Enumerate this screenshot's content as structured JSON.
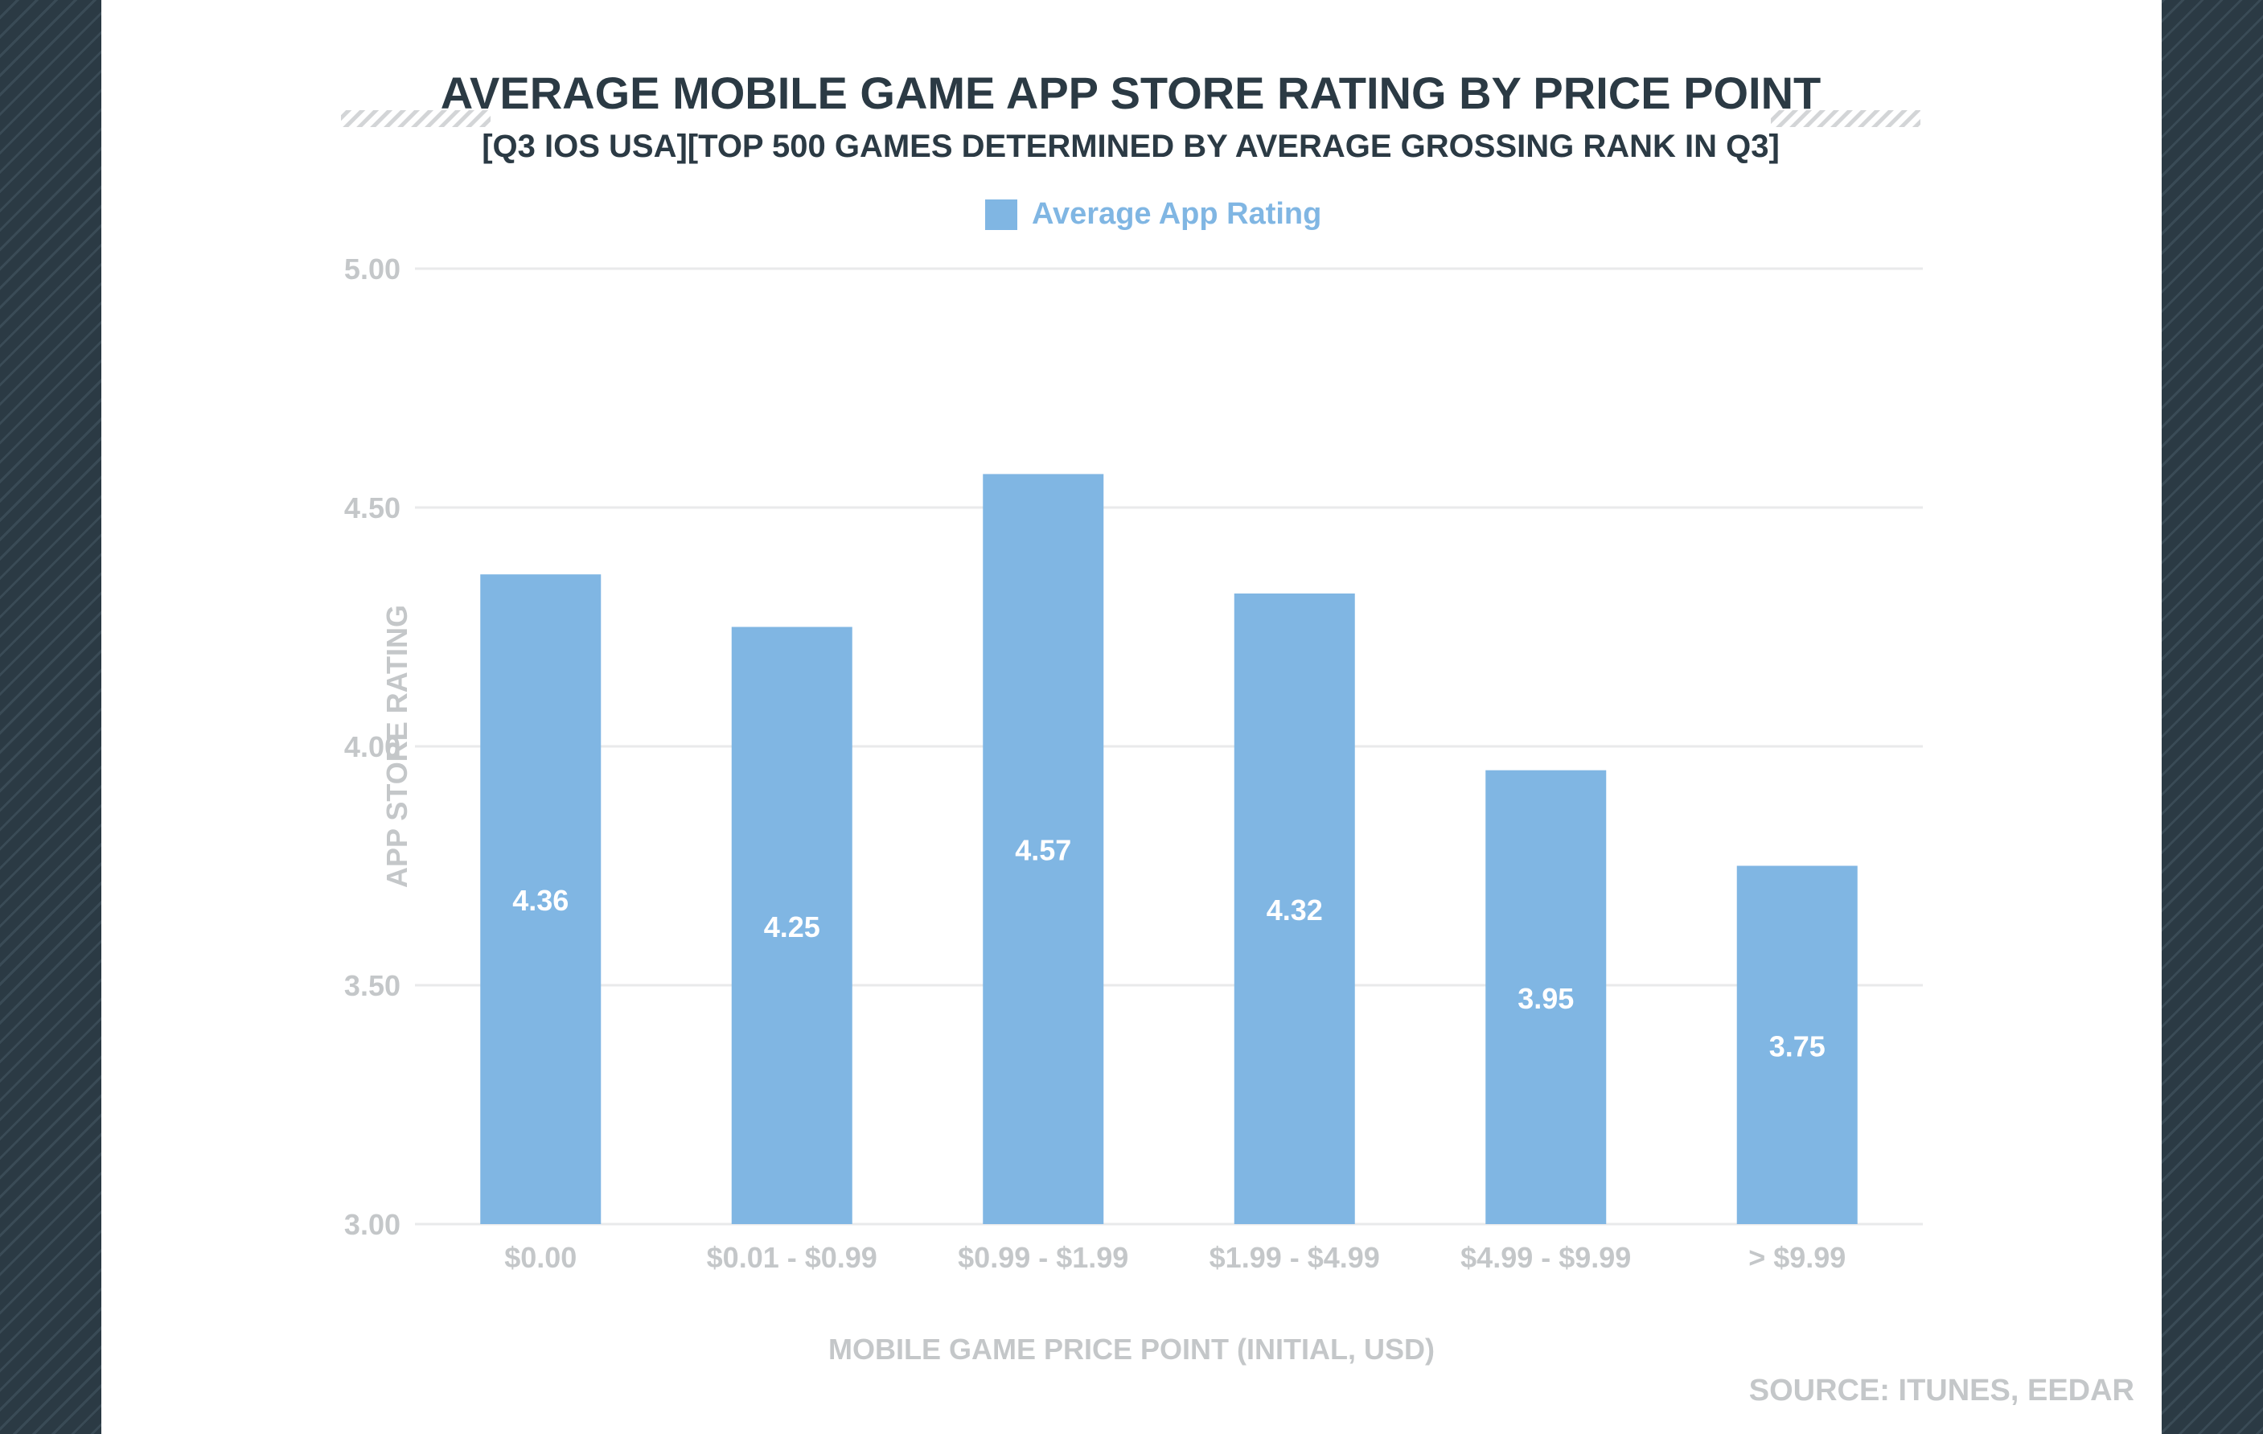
{
  "chart_data": {
    "type": "bar",
    "title": "AVERAGE MOBILE GAME APP STORE RATING BY PRICE POINT",
    "subtitle": "[Q3 IOS USA][TOP 500 GAMES DETERMINED BY AVERAGE GROSSING RANK IN Q3]",
    "xlabel": "MOBILE GAME PRICE POINT (INITIAL, USD)",
    "ylabel": "APP STORE RATING",
    "categories": [
      "$0.00",
      "$0.01 - $0.99",
      "$0.99 - $1.99",
      "$1.99 - $4.99",
      "$4.99 - $9.99",
      "> $9.99"
    ],
    "series": [
      {
        "name": "Average App Rating",
        "values": [
          4.36,
          4.25,
          4.57,
          4.32,
          3.95,
          3.75
        ]
      }
    ],
    "value_labels": [
      "4.36",
      "4.25",
      "4.57",
      "4.32",
      "3.95",
      "3.75"
    ],
    "ylim": [
      3.0,
      5.0
    ],
    "yticks": [
      3.0,
      3.5,
      4.0,
      4.5,
      5.0
    ],
    "ytick_labels": [
      "3.00",
      "3.50",
      "4.00",
      "4.50",
      "5.00"
    ],
    "grid": true,
    "legend_position": "top-center",
    "bar_color": "#80b6e3",
    "source": "SOURCE: ITUNES, EEDAR"
  }
}
